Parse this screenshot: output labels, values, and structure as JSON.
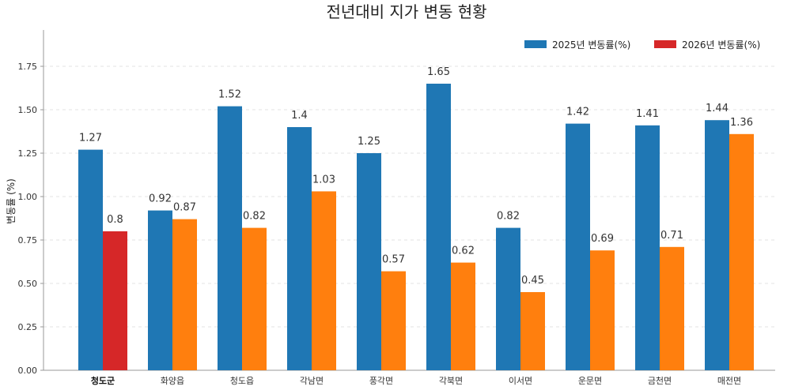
{
  "chart_data": {
    "type": "bar",
    "title": "전년대비 지가 변동 현황",
    "xlabel": "",
    "ylabel": "변동률 (%)",
    "ylim": [
      0,
      1.95
    ],
    "yticks": [
      "0.00",
      "0.25",
      "0.50",
      "0.75",
      "1.00",
      "1.25",
      "1.50",
      "1.75"
    ],
    "grid": true,
    "legend": "top-right",
    "categories": [
      "청도군",
      "화양읍",
      "청도읍",
      "각남면",
      "풍각면",
      "각북면",
      "이서면",
      "운문면",
      "금천면",
      "매전면"
    ],
    "series": [
      {
        "name": "2025년 변동률(%)",
        "color": "#1f77b4",
        "values": [
          1.27,
          0.92,
          1.52,
          1.4,
          1.25,
          1.65,
          0.82,
          1.42,
          1.41,
          1.44
        ]
      },
      {
        "name": "2026년 변동률(%)",
        "color": "#ff7f0e",
        "highlight_color": "#d62728",
        "values": [
          0.8,
          0.87,
          0.82,
          1.03,
          0.57,
          0.62,
          0.45,
          0.69,
          0.71,
          1.36
        ]
      }
    ]
  }
}
